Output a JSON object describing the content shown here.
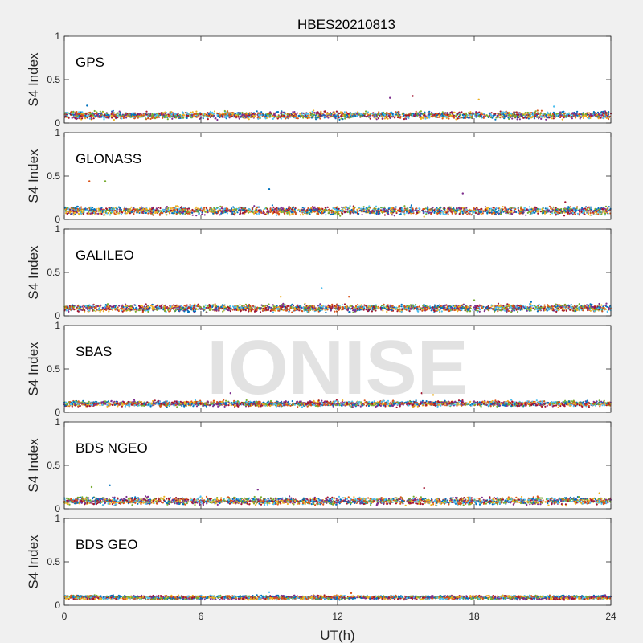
{
  "chart_data": {
    "type": "scatter",
    "title": "HBES20210813",
    "xlabel": "UT(h)",
    "ylabel": "S4 Index",
    "xlim": [
      0,
      24
    ],
    "ylim": [
      0,
      1
    ],
    "xticks": [
      "0",
      "6",
      "12",
      "18",
      "24"
    ],
    "yticks": [
      "0",
      "0.5",
      "1"
    ],
    "grid": false,
    "watermark": "IONISE",
    "series_colors": [
      "#0072bd",
      "#d95319",
      "#edb120",
      "#7e2f8e",
      "#77ac30",
      "#4dbeee",
      "#a2142f"
    ],
    "panels": [
      {
        "name": "GPS",
        "baseline": 0.09,
        "spread": 0.035,
        "spikes": [
          [
            1.0,
            0.2
          ],
          [
            14.3,
            0.29
          ],
          [
            15.3,
            0.31
          ],
          [
            18.2,
            0.27
          ],
          [
            21.5,
            0.19
          ]
        ]
      },
      {
        "name": "GLONASS",
        "baseline": 0.1,
        "spread": 0.04,
        "spikes": [
          [
            1.1,
            0.44
          ],
          [
            1.8,
            0.44
          ],
          [
            9.0,
            0.35
          ],
          [
            17.5,
            0.3
          ],
          [
            22.0,
            0.2
          ]
        ]
      },
      {
        "name": "GALILEO",
        "baseline": 0.09,
        "spread": 0.035,
        "spikes": [
          [
            9.5,
            0.22
          ],
          [
            11.3,
            0.32
          ],
          [
            12.5,
            0.22
          ],
          [
            18.0,
            0.18
          ],
          [
            20.5,
            0.16
          ]
        ]
      },
      {
        "name": "SBAS",
        "baseline": 0.1,
        "spread": 0.025,
        "spikes": [
          [
            7.3,
            0.22
          ],
          [
            15.7,
            0.22
          ],
          [
            16.2,
            0.2
          ]
        ]
      },
      {
        "name": "BDS NGEO",
        "baseline": 0.09,
        "spread": 0.035,
        "spikes": [
          [
            1.2,
            0.25
          ],
          [
            2.0,
            0.27
          ],
          [
            8.5,
            0.22
          ],
          [
            15.8,
            0.24
          ],
          [
            23.5,
            0.18
          ]
        ]
      },
      {
        "name": "BDS GEO",
        "baseline": 0.09,
        "spread": 0.015,
        "spikes": [
          [
            9.0,
            0.15
          ],
          [
            12.6,
            0.14
          ]
        ]
      }
    ]
  }
}
